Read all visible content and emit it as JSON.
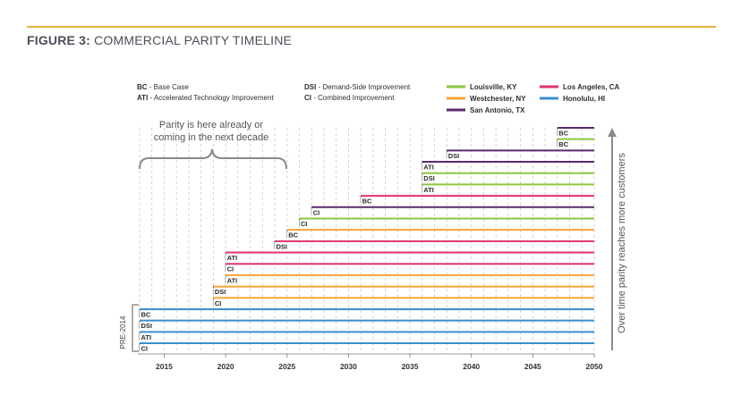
{
  "figure": {
    "label": "FIGURE 3:",
    "title": "COMMERCIAL PARITY TIMELINE"
  },
  "abbreviations": [
    {
      "code": "BC",
      "text": " - Base Case"
    },
    {
      "code": "ATI",
      "text": " - Accelerated Technology Improvement"
    },
    {
      "code": "DSI",
      "text": " - Demand-Side Improvement"
    },
    {
      "code": "CI",
      "text": " - Combined Improvement"
    }
  ],
  "colors": {
    "Louisville, KY": "#8dc63f",
    "Westchester, NY": "#f7a534",
    "San Antonio, TX": "#5b2a6e",
    "Los Angeles, CA": "#e0336b",
    "Honolulu, HI": "#3a8fd1",
    "accent": "#e6b43c"
  },
  "annotation": {
    "line1": "Parity is here already or",
    "line2": "coming in the next decade"
  },
  "pre_label": "PRE-2014",
  "right_label": "Over time parity reaches more customers",
  "chart_data": {
    "type": "timeline",
    "title": "COMMERCIAL PARITY TIMELINE",
    "xlim": [
      2013,
      2050
    ],
    "xticks": [
      2015,
      2020,
      2025,
      2030,
      2035,
      2040,
      2045,
      2050
    ],
    "legend": [
      "Louisville, KY",
      "Los Angeles, CA",
      "Westchester, NY",
      "Honolulu, HI",
      "San Antonio, TX"
    ],
    "legend_placement": "top-right",
    "bars": [
      {
        "series": "San Antonio, TX",
        "scenario": "BC",
        "start": 2047,
        "end": 2050
      },
      {
        "series": "Louisville, KY",
        "scenario": "BC",
        "start": 2047,
        "end": 2050
      },
      {
        "series": "San Antonio, TX",
        "scenario": "DSI",
        "start": 2038,
        "end": 2050
      },
      {
        "series": "San Antonio, TX",
        "scenario": "ATI",
        "start": 2036,
        "end": 2050
      },
      {
        "series": "Louisville, KY",
        "scenario": "DSI",
        "start": 2036,
        "end": 2050
      },
      {
        "series": "Louisville, KY",
        "scenario": "ATI",
        "start": 2036,
        "end": 2050
      },
      {
        "series": "Los Angeles, CA",
        "scenario": "BC",
        "start": 2031,
        "end": 2050
      },
      {
        "series": "San Antonio, TX",
        "scenario": "CI",
        "start": 2027,
        "end": 2050
      },
      {
        "series": "Louisville, KY",
        "scenario": "CI",
        "start": 2026,
        "end": 2050
      },
      {
        "series": "Westchester, NY",
        "scenario": "BC",
        "start": 2025,
        "end": 2050
      },
      {
        "series": "Los Angeles, CA",
        "scenario": "DSI",
        "start": 2024,
        "end": 2050
      },
      {
        "series": "Los Angeles, CA",
        "scenario": "ATI",
        "start": 2020,
        "end": 2050
      },
      {
        "series": "Los Angeles, CA",
        "scenario": "CI",
        "start": 2020,
        "end": 2050
      },
      {
        "series": "Westchester, NY",
        "scenario": "ATI",
        "start": 2020,
        "end": 2050
      },
      {
        "series": "Westchester, NY",
        "scenario": "DSI",
        "start": 2019,
        "end": 2050
      },
      {
        "series": "Westchester, NY",
        "scenario": "CI",
        "start": 2019,
        "end": 2050
      },
      {
        "series": "Honolulu, HI",
        "scenario": "BC",
        "start": 2013,
        "end": 2050
      },
      {
        "series": "Honolulu, HI",
        "scenario": "DSI",
        "start": 2013,
        "end": 2050
      },
      {
        "series": "Honolulu, HI",
        "scenario": "ATI",
        "start": 2013,
        "end": 2050
      },
      {
        "series": "Honolulu, HI",
        "scenario": "CI",
        "start": 2013,
        "end": 2050
      }
    ]
  }
}
